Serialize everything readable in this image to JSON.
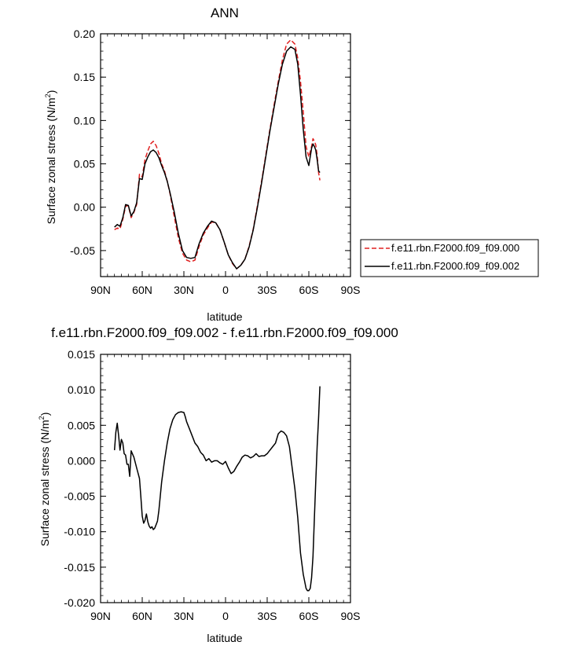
{
  "chart_data": [
    {
      "type": "line",
      "title": "ANN",
      "xlabel": "latitude",
      "ylabel": "Surface zonal stress (N/m",
      "ylabel_sup": "2",
      "ylabel_tail": ")",
      "xlim": [
        90,
        -90
      ],
      "ylim": [
        -0.08,
        0.2
      ],
      "x_ticks": [
        90,
        60,
        30,
        0,
        -30,
        -60,
        -90
      ],
      "x_tick_labels": [
        "90N",
        "60N",
        "30N",
        "0",
        "30S",
        "60S",
        "90S"
      ],
      "y_ticks": [
        0.2,
        0.15,
        0.1,
        0.05,
        0.0,
        -0.05
      ],
      "y_tick_labels": [
        "0.20",
        "0.15",
        "0.10",
        "0.05",
        "0.00",
        "-0.05"
      ],
      "legend_position": "right",
      "series": [
        {
          "name": "f.e11.rbn.F2000.f09_f09.000",
          "color": "#e02020",
          "dash": "dashed",
          "x": [
            80,
            78,
            76,
            74,
            72,
            70,
            68,
            66,
            64,
            62,
            60,
            58,
            56,
            54,
            52,
            50,
            48,
            46,
            44,
            42,
            40,
            37,
            34,
            31,
            28,
            25,
            22,
            19,
            16,
            13,
            10,
            7,
            4,
            1,
            -2,
            -5,
            -8,
            -11,
            -14,
            -17,
            -20,
            -23,
            -26,
            -29,
            -32,
            -35,
            -38,
            -41,
            -44,
            -47,
            -50,
            -52,
            -54,
            -56,
            -58,
            -60,
            -62,
            -63,
            -64,
            -65,
            -66,
            -67,
            -68
          ],
          "y": [
            -0.026,
            -0.024,
            -0.025,
            -0.014,
            0.001,
            0.002,
            -0.012,
            -0.006,
            0.003,
            0.038,
            0.035,
            0.055,
            0.065,
            0.073,
            0.076,
            0.071,
            0.062,
            0.05,
            0.042,
            0.03,
            0.016,
            -0.01,
            -0.035,
            -0.053,
            -0.061,
            -0.063,
            -0.061,
            -0.045,
            -0.032,
            -0.024,
            -0.017,
            -0.018,
            -0.026,
            -0.04,
            -0.055,
            -0.065,
            -0.071,
            -0.067,
            -0.06,
            -0.045,
            -0.025,
            0.002,
            0.03,
            0.06,
            0.09,
            0.118,
            0.145,
            0.17,
            0.188,
            0.193,
            0.188,
            0.172,
            0.145,
            0.11,
            0.07,
            0.058,
            0.07,
            0.079,
            0.076,
            0.072,
            0.06,
            0.04,
            0.031
          ]
        },
        {
          "name": "f.e11.rbn.F2000.f09_f09.002",
          "color": "#000000",
          "dash": "solid",
          "x": [
            80,
            78,
            76,
            74,
            72,
            70,
            68,
            66,
            64,
            62,
            60,
            58,
            56,
            54,
            52,
            50,
            48,
            46,
            44,
            42,
            40,
            37,
            34,
            31,
            28,
            25,
            22,
            19,
            16,
            13,
            10,
            7,
            4,
            1,
            -2,
            -5,
            -8,
            -11,
            -14,
            -17,
            -20,
            -23,
            -26,
            -29,
            -32,
            -35,
            -38,
            -41,
            -44,
            -47,
            -50,
            -52,
            -54,
            -56,
            -58,
            -60,
            -62,
            -63,
            -64,
            -65,
            -66,
            -67,
            -68
          ],
          "y": [
            -0.023,
            -0.02,
            -0.022,
            -0.012,
            0.003,
            0.002,
            -0.01,
            -0.005,
            0.005,
            0.033,
            0.032,
            0.05,
            0.058,
            0.064,
            0.066,
            0.063,
            0.057,
            0.048,
            0.04,
            0.03,
            0.017,
            -0.005,
            -0.03,
            -0.05,
            -0.058,
            -0.059,
            -0.058,
            -0.042,
            -0.03,
            -0.022,
            -0.016,
            -0.018,
            -0.026,
            -0.04,
            -0.055,
            -0.064,
            -0.071,
            -0.067,
            -0.06,
            -0.046,
            -0.026,
            0.0,
            0.028,
            0.058,
            0.088,
            0.115,
            0.142,
            0.165,
            0.18,
            0.185,
            0.182,
            0.165,
            0.13,
            0.09,
            0.058,
            0.048,
            0.068,
            0.073,
            0.07,
            0.066,
            0.055,
            0.042,
            0.04
          ]
        }
      ]
    },
    {
      "type": "line",
      "title": "f.e11.rbn.F2000.f09_f09.002 - f.e11.rbn.F2000.f09_f09.000",
      "xlabel": "latitude",
      "ylabel": "Surface zonal stress (N/m",
      "ylabel_sup": "2",
      "ylabel_tail": ")",
      "xlim": [
        90,
        -90
      ],
      "ylim": [
        -0.02,
        0.015
      ],
      "x_ticks": [
        90,
        60,
        30,
        0,
        -30,
        -60,
        -90
      ],
      "x_tick_labels": [
        "90N",
        "60N",
        "30N",
        "0",
        "30S",
        "60S",
        "90S"
      ],
      "y_ticks": [
        0.015,
        0.01,
        0.005,
        0.0,
        -0.005,
        -0.01,
        -0.015,
        -0.02
      ],
      "y_tick_labels": [
        "0.015",
        "0.010",
        "0.005",
        "0.000",
        "-0.005",
        "-0.010",
        "-0.015",
        "-0.020"
      ],
      "series": [
        {
          "color": "#000000",
          "dash": "solid",
          "x": [
            80,
            79,
            78,
            77,
            76,
            75,
            74,
            73,
            72,
            71,
            70,
            69,
            68,
            66,
            64,
            62,
            61,
            60,
            59,
            58,
            57,
            56,
            55,
            54,
            53,
            52,
            51,
            50,
            49,
            48,
            46,
            44,
            42,
            40,
            38,
            36,
            34,
            32,
            30,
            29,
            28,
            26,
            24,
            22,
            20,
            18,
            16,
            14,
            12,
            10,
            8,
            6,
            4,
            2,
            0,
            -2,
            -4,
            -6,
            -8,
            -10,
            -12,
            -14,
            -16,
            -18,
            -20,
            -22,
            -24,
            -26,
            -28,
            -30,
            -32,
            -34,
            -36,
            -38,
            -40,
            -42,
            -44,
            -46,
            -48,
            -50,
            -52,
            -54,
            -56,
            -58,
            -59,
            -60,
            -61,
            -62,
            -63,
            -64,
            -65,
            -66,
            -67,
            -68
          ],
          "y": [
            0.0015,
            0.004,
            0.0053,
            0.0035,
            0.0015,
            0.003,
            0.0025,
            0.001,
            0.0008,
            -0.0005,
            -0.0005,
            -0.0022,
            0.0014,
            0.0005,
            -0.001,
            -0.0025,
            -0.005,
            -0.0078,
            -0.0088,
            -0.0084,
            -0.0075,
            -0.0086,
            -0.0092,
            -0.0095,
            -0.0093,
            -0.0097,
            -0.0095,
            -0.009,
            -0.0085,
            -0.007,
            -0.003,
            0.0,
            0.0025,
            0.0045,
            0.0058,
            0.0065,
            0.0068,
            0.0069,
            0.0068,
            0.0062,
            0.0055,
            0.0045,
            0.0035,
            0.0025,
            0.002,
            0.0012,
            0.0008,
            0.0,
            0.0003,
            -0.0002,
            0.0,
            0.0,
            -0.0003,
            -0.0005,
            -0.0001,
            -0.001,
            -0.0018,
            -0.0015,
            -0.0008,
            -0.0002,
            0.0005,
            0.0008,
            0.0007,
            0.0004,
            0.0006,
            0.001,
            0.0006,
            0.0007,
            0.0007,
            0.001,
            0.0015,
            0.002,
            0.0025,
            0.0038,
            0.0042,
            0.004,
            0.0035,
            0.002,
            -0.001,
            -0.004,
            -0.008,
            -0.013,
            -0.016,
            -0.018,
            -0.0183,
            -0.0183,
            -0.018,
            -0.0165,
            -0.0135,
            -0.008,
            -0.003,
            0.002,
            0.006,
            0.0105
          ]
        }
      ]
    }
  ]
}
